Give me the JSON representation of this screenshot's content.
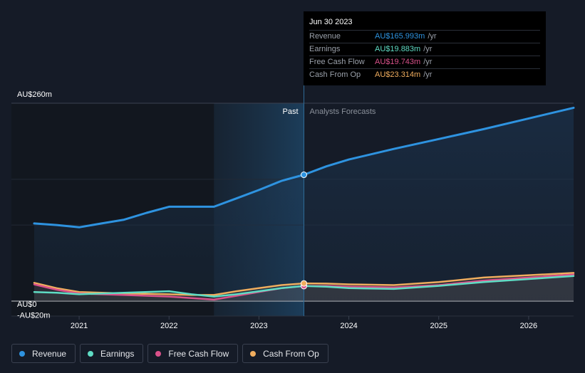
{
  "tooltip": {
    "date": "Jun 30 2023",
    "rows": [
      {
        "name": "Revenue",
        "value": "AU$165.993m",
        "unit": "/yr",
        "color": "#2e93e0"
      },
      {
        "name": "Earnings",
        "value": "AU$19.883m",
        "unit": "/yr",
        "color": "#5fdcc4"
      },
      {
        "name": "Free Cash Flow",
        "value": "AU$19.743m",
        "unit": "/yr",
        "color": "#d9518a"
      },
      {
        "name": "Cash From Op",
        "value": "AU$23.314m",
        "unit": "/yr",
        "color": "#f0ad5e"
      }
    ]
  },
  "legend": [
    {
      "label": "Revenue",
      "color": "#2e93e0"
    },
    {
      "label": "Earnings",
      "color": "#5fdcc4"
    },
    {
      "label": "Free Cash Flow",
      "color": "#d9518a"
    },
    {
      "label": "Cash From Op",
      "color": "#f0ad5e"
    }
  ],
  "chart_data": {
    "type": "line",
    "title": "",
    "xlabel": "",
    "ylabel": "",
    "y_axis_labels": [
      "AU$260m",
      "AU$0",
      "-AU$20m"
    ],
    "ylim": [
      -20,
      260
    ],
    "xlim": [
      2020.5,
      2026.5
    ],
    "x_ticks": [
      2021,
      2022,
      2023,
      2024,
      2025,
      2026
    ],
    "x_tick_labels": [
      "2021",
      "2022",
      "2023",
      "2024",
      "2025",
      "2026"
    ],
    "past_label": "Past",
    "forecast_label": "Analysts Forecasts",
    "past_end": 2023.5,
    "highlight_start": 2022.5,
    "series": [
      {
        "name": "Revenue",
        "color": "#2e93e0",
        "points": [
          [
            2020.5,
            102
          ],
          [
            2020.75,
            100
          ],
          [
            2021.0,
            97
          ],
          [
            2021.25,
            102
          ],
          [
            2021.5,
            107
          ],
          [
            2021.75,
            116
          ],
          [
            2022.0,
            124
          ],
          [
            2022.25,
            124
          ],
          [
            2022.5,
            124
          ],
          [
            2022.75,
            135
          ],
          [
            2023.0,
            146
          ],
          [
            2023.25,
            158
          ],
          [
            2023.5,
            166
          ],
          [
            2023.75,
            177
          ],
          [
            2024.0,
            186
          ],
          [
            2024.5,
            200
          ],
          [
            2025.0,
            213
          ],
          [
            2025.5,
            226
          ],
          [
            2026.0,
            240
          ],
          [
            2026.5,
            254
          ]
        ]
      },
      {
        "name": "Earnings",
        "color": "#5fdcc4",
        "points": [
          [
            2020.5,
            12
          ],
          [
            2020.75,
            11
          ],
          [
            2021.0,
            9
          ],
          [
            2021.5,
            11
          ],
          [
            2022.0,
            13
          ],
          [
            2022.25,
            9
          ],
          [
            2022.5,
            6
          ],
          [
            2022.75,
            9
          ],
          [
            2023.0,
            13
          ],
          [
            2023.25,
            17
          ],
          [
            2023.5,
            19.9
          ],
          [
            2023.75,
            19
          ],
          [
            2024.0,
            17
          ],
          [
            2024.5,
            16
          ],
          [
            2025.0,
            20
          ],
          [
            2025.5,
            25
          ],
          [
            2026.0,
            29
          ],
          [
            2026.5,
            33
          ]
        ]
      },
      {
        "name": "Free Cash Flow",
        "color": "#d9518a",
        "points": [
          [
            2020.5,
            22
          ],
          [
            2020.75,
            15
          ],
          [
            2021.0,
            10
          ],
          [
            2021.5,
            8
          ],
          [
            2022.0,
            6
          ],
          [
            2022.25,
            4
          ],
          [
            2022.5,
            2
          ],
          [
            2022.75,
            7
          ],
          [
            2023.0,
            12
          ],
          [
            2023.25,
            17
          ],
          [
            2023.5,
            19.7
          ],
          [
            2023.75,
            20
          ],
          [
            2024.0,
            19
          ],
          [
            2024.5,
            18
          ],
          [
            2025.0,
            21
          ],
          [
            2025.5,
            27
          ],
          [
            2026.0,
            31
          ],
          [
            2026.5,
            35
          ]
        ]
      },
      {
        "name": "Cash From Op",
        "color": "#f0ad5e",
        "points": [
          [
            2020.5,
            24
          ],
          [
            2020.75,
            17
          ],
          [
            2021.0,
            12
          ],
          [
            2021.5,
            10
          ],
          [
            2022.0,
            9
          ],
          [
            2022.25,
            8
          ],
          [
            2022.5,
            8
          ],
          [
            2022.75,
            13
          ],
          [
            2023.0,
            17
          ],
          [
            2023.25,
            21
          ],
          [
            2023.5,
            23.3
          ],
          [
            2023.75,
            23
          ],
          [
            2024.0,
            22
          ],
          [
            2024.5,
            21
          ],
          [
            2025.0,
            25
          ],
          [
            2025.5,
            31
          ],
          [
            2026.0,
            34
          ],
          [
            2026.5,
            37
          ]
        ]
      }
    ]
  }
}
